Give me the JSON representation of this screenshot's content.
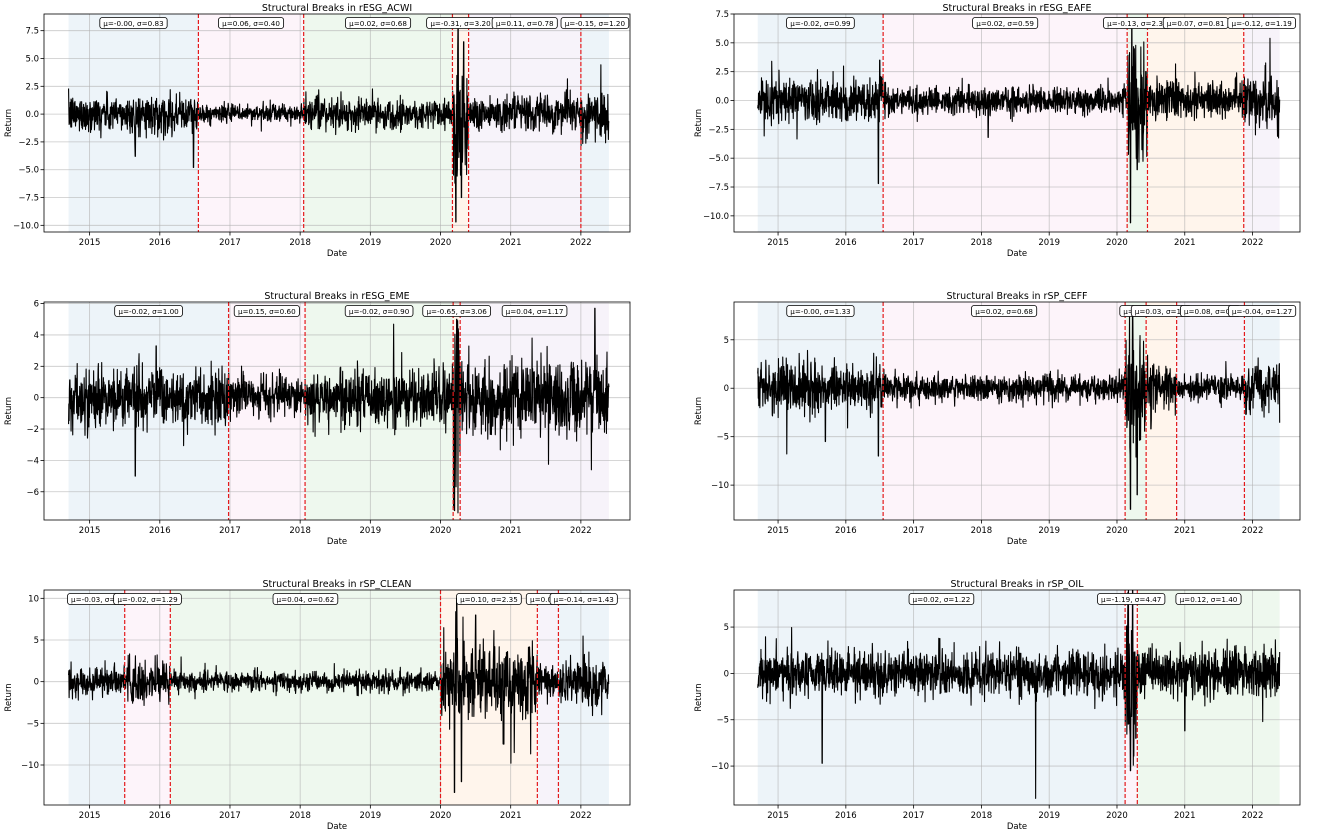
{
  "chart_data": [
    {
      "type": "line",
      "title": "Structural Breaks in rESG_ACWI",
      "xlabel": "Date",
      "ylabel": "Return",
      "xlim": [
        2014.35,
        2022.7
      ],
      "ylim": [
        -10.6,
        9.0
      ],
      "xticks": [
        2015,
        2016,
        2017,
        2018,
        2019,
        2020,
        2021,
        2022
      ],
      "yticks": [
        7.5,
        5.0,
        2.5,
        0.0,
        -2.5,
        -5.0,
        -7.5,
        -10.0
      ],
      "ytick_labels": [
        "7.5",
        "5.0",
        "2.5",
        "0.0",
        "−2.5",
        "−5.0",
        "−7.5",
        "−10.0"
      ],
      "grid": true,
      "date_range": [
        2014.7,
        2022.4
      ],
      "breaks": [
        2016.55,
        2018.05,
        2020.17,
        2020.4,
        2022.0
      ],
      "segments": [
        {
          "start": 2014.7,
          "end": 2016.55,
          "color": "#1f77b4",
          "label": "μ=-0.00, σ=0.83",
          "mean": 0.0,
          "sd": 0.83
        },
        {
          "start": 2016.55,
          "end": 2018.05,
          "color": "#e377c2",
          "label": "μ=0.06, σ=0.40",
          "mean": 0.06,
          "sd": 0.4
        },
        {
          "start": 2018.05,
          "end": 2020.17,
          "color": "#2ca02c",
          "label": "μ=0.02, σ=0.68",
          "mean": 0.02,
          "sd": 0.68
        },
        {
          "start": 2020.17,
          "end": 2020.4,
          "color": "#ff7f0e",
          "label": "μ=-0.31, σ=3.20",
          "mean": -0.31,
          "sd": 3.2
        },
        {
          "start": 2020.4,
          "end": 2022.0,
          "color": "#9467bd",
          "label": "μ=0.11, σ=0.78",
          "mean": 0.11,
          "sd": 0.78
        },
        {
          "start": 2022.0,
          "end": 2022.4,
          "color": "#1f77b4",
          "label": "μ=-0.15, σ=1.20",
          "mean": -0.15,
          "sd": 1.2
        }
      ],
      "extremes": [
        [
          2015.65,
          -3.8
        ],
        [
          2016.48,
          -4.8
        ],
        [
          2020.22,
          -9.7
        ],
        [
          2020.25,
          8.0
        ],
        [
          2020.3,
          -7.5
        ],
        [
          2020.33,
          6.5
        ]
      ]
    },
    {
      "type": "line",
      "title": "Structural Breaks in rESG_EAFE",
      "xlabel": "Date",
      "ylabel": "Return",
      "xlim": [
        2014.35,
        2022.7
      ],
      "ylim": [
        -11.4,
        7.5
      ],
      "xticks": [
        2015,
        2016,
        2017,
        2018,
        2019,
        2020,
        2021,
        2022
      ],
      "yticks": [
        7.5,
        5.0,
        2.5,
        0.0,
        -2.5,
        -5.0,
        -7.5,
        -10.0
      ],
      "ytick_labels": [
        "7.5",
        "5.0",
        "2.5",
        "0.0",
        "−2.5",
        "−5.0",
        "−7.5",
        "−10.0"
      ],
      "grid": true,
      "date_range": [
        2014.7,
        2022.4
      ],
      "breaks": [
        2016.55,
        2020.15,
        2020.45,
        2021.87
      ],
      "segments": [
        {
          "start": 2014.7,
          "end": 2016.55,
          "color": "#1f77b4",
          "label": "μ=-0.02, σ=0.99",
          "mean": -0.02,
          "sd": 0.99
        },
        {
          "start": 2016.55,
          "end": 2020.15,
          "color": "#e377c2",
          "label": "μ=0.02, σ=0.59",
          "mean": 0.02,
          "sd": 0.59
        },
        {
          "start": 2020.15,
          "end": 2020.45,
          "color": "#2ca02c",
          "label": "μ=-0.13, σ=2.36",
          "mean": -0.13,
          "sd": 2.36
        },
        {
          "start": 2020.45,
          "end": 2021.87,
          "color": "#ff7f0e",
          "label": "μ=0.07, σ=0.81",
          "mean": 0.07,
          "sd": 0.81
        },
        {
          "start": 2021.87,
          "end": 2022.4,
          "color": "#9467bd",
          "label": "μ=-0.12, σ=1.19",
          "mean": -0.12,
          "sd": 1.19
        }
      ],
      "extremes": [
        [
          2016.48,
          -7.2
        ],
        [
          2016.5,
          3.5
        ],
        [
          2018.1,
          -3.2
        ],
        [
          2020.2,
          -10.6
        ],
        [
          2020.22,
          6.4
        ],
        [
          2020.3,
          -6.0
        ]
      ]
    },
    {
      "type": "line",
      "title": "Structural Breaks in rESG_EME",
      "xlabel": "Date",
      "ylabel": "Return",
      "xlim": [
        2014.35,
        2022.7
      ],
      "ylim": [
        -7.8,
        6.1
      ],
      "xticks": [
        2015,
        2016,
        2017,
        2018,
        2019,
        2020,
        2021,
        2022
      ],
      "yticks": [
        6,
        4,
        2,
        0,
        -2,
        -4,
        -6
      ],
      "ytick_labels": [
        "6",
        "4",
        "2",
        "0",
        "−2",
        "−4",
        "−6"
      ],
      "grid": true,
      "date_range": [
        2014.7,
        2022.4
      ],
      "breaks": [
        2016.98,
        2018.07,
        2020.18,
        2020.28
      ],
      "segments": [
        {
          "start": 2014.7,
          "end": 2016.98,
          "color": "#1f77b4",
          "label": "μ=-0.02, σ=1.00",
          "mean": -0.02,
          "sd": 1.0
        },
        {
          "start": 2016.98,
          "end": 2018.07,
          "color": "#e377c2",
          "label": "μ=0.15, σ=0.60",
          "mean": 0.15,
          "sd": 0.6
        },
        {
          "start": 2018.07,
          "end": 2020.18,
          "color": "#2ca02c",
          "label": "μ=-0.02, σ=0.90",
          "mean": -0.02,
          "sd": 0.9
        },
        {
          "start": 2020.18,
          "end": 2020.28,
          "color": "#ff7f0e",
          "label": "μ=-0.65, σ=3.06",
          "mean": -0.65,
          "sd": 3.06
        },
        {
          "start": 2020.28,
          "end": 2022.4,
          "color": "#9467bd",
          "label": "μ=0.04, σ=1.17",
          "mean": 0.04,
          "sd": 1.17
        }
      ],
      "extremes": [
        [
          2015.65,
          -5.0
        ],
        [
          2015.95,
          3.3
        ],
        [
          2020.2,
          -7.2
        ],
        [
          2020.23,
          5.0
        ],
        [
          2022.15,
          -4.6
        ],
        [
          2022.2,
          5.7
        ]
      ]
    },
    {
      "type": "line",
      "title": "Structural Breaks in rSP_CEFF",
      "xlabel": "Date",
      "ylabel": "Return",
      "xlim": [
        2014.35,
        2022.7
      ],
      "ylim": [
        -13.6,
        8.9
      ],
      "xticks": [
        2015,
        2016,
        2017,
        2018,
        2019,
        2020,
        2021,
        2022
      ],
      "yticks": [
        5,
        0,
        -5,
        -10
      ],
      "ytick_labels": [
        "5",
        "0",
        "−5",
        "−10"
      ],
      "grid": true,
      "date_range": [
        2014.7,
        2022.4
      ],
      "breaks": [
        2016.55,
        2020.12,
        2020.43,
        2020.88,
        2021.88
      ],
      "segments": [
        {
          "start": 2014.7,
          "end": 2016.55,
          "color": "#1f77b4",
          "label": "μ=-0.00, σ=1.33",
          "mean": 0.0,
          "sd": 1.33
        },
        {
          "start": 2016.55,
          "end": 2020.12,
          "color": "#e377c2",
          "label": "μ=0.02, σ=0.68",
          "mean": 0.02,
          "sd": 0.68
        },
        {
          "start": 2020.12,
          "end": 2020.43,
          "color": "#2ca02c",
          "label": "μ=-0.2",
          "mean": -0.2,
          "sd": 3.2
        },
        {
          "start": 2020.43,
          "end": 2020.88,
          "color": "#ff7f0e",
          "label": "μ=0.03, σ=1.2",
          "mean": 0.03,
          "sd": 1.2
        },
        {
          "start": 2020.88,
          "end": 2021.88,
          "color": "#9467bd",
          "label": "μ=0.08, σ=0.7",
          "mean": 0.08,
          "sd": 0.7
        },
        {
          "start": 2021.88,
          "end": 2022.4,
          "color": "#1f77b4",
          "label": "μ=-0.04, σ=1.27",
          "mean": -0.04,
          "sd": 1.27
        }
      ],
      "extremes": [
        [
          2015.7,
          -5.5
        ],
        [
          2016.48,
          -7.0
        ],
        [
          2020.2,
          -12.5
        ],
        [
          2020.23,
          8.5
        ],
        [
          2020.3,
          -11.0
        ],
        [
          2020.5,
          -4.2
        ]
      ]
    },
    {
      "type": "line",
      "title": "Structural Breaks in rSP_CLEAN",
      "xlabel": "Date",
      "ylabel": "Return",
      "xlim": [
        2014.35,
        2022.7
      ],
      "ylim": [
        -14.8,
        11.0
      ],
      "xticks": [
        2015,
        2016,
        2017,
        2018,
        2019,
        2020,
        2021,
        2022
      ],
      "yticks": [
        10,
        5,
        0,
        -5,
        -10
      ],
      "ytick_labels": [
        "10",
        "5",
        "0",
        "−5",
        "−10"
      ],
      "grid": true,
      "date_range": [
        2014.7,
        2022.4
      ],
      "breaks": [
        2015.5,
        2016.15,
        2020.0,
        2021.38,
        2021.68
      ],
      "segments": [
        {
          "start": 2014.7,
          "end": 2015.5,
          "color": "#1f77b4",
          "label": "μ=-0.03, σ=0.",
          "mean": -0.03,
          "sd": 0.9
        },
        {
          "start": 2015.5,
          "end": 2016.15,
          "color": "#e377c2",
          "label": "μ=-0.02, σ=1.29",
          "mean": -0.02,
          "sd": 1.29
        },
        {
          "start": 2016.15,
          "end": 2020.0,
          "color": "#2ca02c",
          "label": "μ=0.04, σ=0.62",
          "mean": 0.04,
          "sd": 0.62
        },
        {
          "start": 2020.0,
          "end": 2021.38,
          "color": "#ff7f0e",
          "label": "μ=0.10, σ=2.35",
          "mean": 0.1,
          "sd": 2.35
        },
        {
          "start": 2021.38,
          "end": 2021.68,
          "color": "#9467bd",
          "label": "μ=0.08, σ",
          "mean": 0.08,
          "sd": 1.0
        },
        {
          "start": 2021.68,
          "end": 2022.4,
          "color": "#1f77b4",
          "label": "μ=-0.14, σ=1.43",
          "mean": -0.14,
          "sd": 1.43
        }
      ],
      "extremes": [
        [
          2020.2,
          -13.3
        ],
        [
          2020.23,
          10.0
        ],
        [
          2020.3,
          -12.0
        ],
        [
          2020.5,
          8.0
        ],
        [
          2020.9,
          -7.5
        ]
      ]
    },
    {
      "type": "line",
      "title": "Structural Breaks in rSP_OIL",
      "xlabel": "Date",
      "ylabel": "Return",
      "xlim": [
        2014.35,
        2022.7
      ],
      "ylim": [
        -14.2,
        9.0
      ],
      "xticks": [
        2015,
        2016,
        2017,
        2018,
        2019,
        2020,
        2021,
        2022
      ],
      "yticks": [
        5,
        0,
        -5,
        -10
      ],
      "ytick_labels": [
        "5",
        "0",
        "−5",
        "−10"
      ],
      "grid": true,
      "date_range": [
        2014.7,
        2022.4
      ],
      "breaks": [
        2020.12,
        2020.3
      ],
      "segments": [
        {
          "start": 2014.7,
          "end": 2020.12,
          "color": "#1f77b4",
          "label": "μ=0.02, σ=1.22",
          "mean": 0.02,
          "sd": 1.22
        },
        {
          "start": 2020.12,
          "end": 2020.3,
          "color": "#e377c2",
          "label": "μ=-1.19, σ=4.47",
          "mean": -1.19,
          "sd": 4.47
        },
        {
          "start": 2020.3,
          "end": 2022.4,
          "color": "#2ca02c",
          "label": "μ=0.12, σ=1.40",
          "mean": 0.12,
          "sd": 1.4
        }
      ],
      "extremes": [
        [
          2015.65,
          -9.7
        ],
        [
          2018.8,
          -13.8
        ],
        [
          2020.2,
          -10.5
        ],
        [
          2020.23,
          9.0
        ],
        [
          2020.28,
          -7.0
        ],
        [
          2021.0,
          -6.2
        ],
        [
          2022.15,
          -5.2
        ]
      ]
    }
  ]
}
